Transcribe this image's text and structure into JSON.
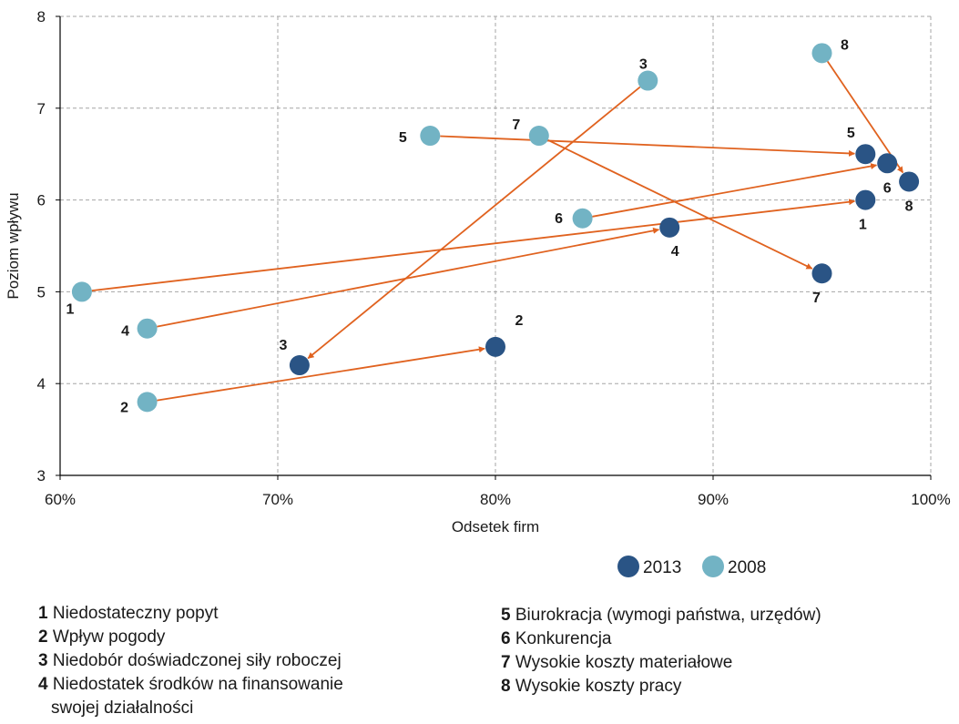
{
  "chart_data": {
    "type": "scatter",
    "xlabel": "Odsetek firm",
    "ylabel": "Poziom wpływu",
    "xlim": [
      60,
      100
    ],
    "ylim": [
      3,
      8
    ],
    "x_ticks": [
      60,
      70,
      80,
      90,
      100
    ],
    "x_tick_labels": [
      "60%",
      "70%",
      "80%",
      "90%",
      "100%"
    ],
    "y_ticks": [
      3,
      4,
      5,
      6,
      7,
      8
    ],
    "y_tick_labels": [
      "3",
      "4",
      "5",
      "6",
      "7",
      "8"
    ],
    "grid": true,
    "legend_position": "bottom-right",
    "series": [
      {
        "name": "2008",
        "color": "#72b3c4",
        "points": [
          {
            "id": "1",
            "x": 61,
            "y": 5.0
          },
          {
            "id": "2",
            "x": 64,
            "y": 3.8
          },
          {
            "id": "3",
            "x": 87,
            "y": 7.3
          },
          {
            "id": "4",
            "x": 64,
            "y": 4.6
          },
          {
            "id": "5",
            "x": 77,
            "y": 6.7
          },
          {
            "id": "6",
            "x": 84,
            "y": 5.8
          },
          {
            "id": "7",
            "x": 82,
            "y": 6.7
          },
          {
            "id": "8",
            "x": 95,
            "y": 7.6
          }
        ]
      },
      {
        "name": "2013",
        "color": "#2a5485",
        "points": [
          {
            "id": "1",
            "x": 97,
            "y": 6.0
          },
          {
            "id": "2",
            "x": 80,
            "y": 4.4
          },
          {
            "id": "3",
            "x": 71,
            "y": 4.2
          },
          {
            "id": "4",
            "x": 88,
            "y": 5.7
          },
          {
            "id": "5",
            "x": 97,
            "y": 6.5
          },
          {
            "id": "6",
            "x": 98,
            "y": 6.4
          },
          {
            "id": "7",
            "x": 95,
            "y": 5.2
          },
          {
            "id": "8",
            "x": 99,
            "y": 6.2
          }
        ]
      }
    ],
    "arrow_color": "#e0621f",
    "legend_order": [
      "2013",
      "2008"
    ]
  },
  "key": [
    {
      "num": "1",
      "text": "Niedostateczny popyt"
    },
    {
      "num": "2",
      "text": "Wpływ pogody"
    },
    {
      "num": "3",
      "text": "Niedobór doświadczonej siły roboczej"
    },
    {
      "num": "4",
      "text": "Niedostatek środków na finansowanie",
      "cont": "swojej działalności"
    },
    {
      "num": "5",
      "text": "Biurokracja (wymogi państwa, urzędów)"
    },
    {
      "num": "6",
      "text": "Konkurencja"
    },
    {
      "num": "7",
      "text": "Wysokie koszty materiałowe"
    },
    {
      "num": "8",
      "text": "Wysokie koszty pracy"
    }
  ]
}
